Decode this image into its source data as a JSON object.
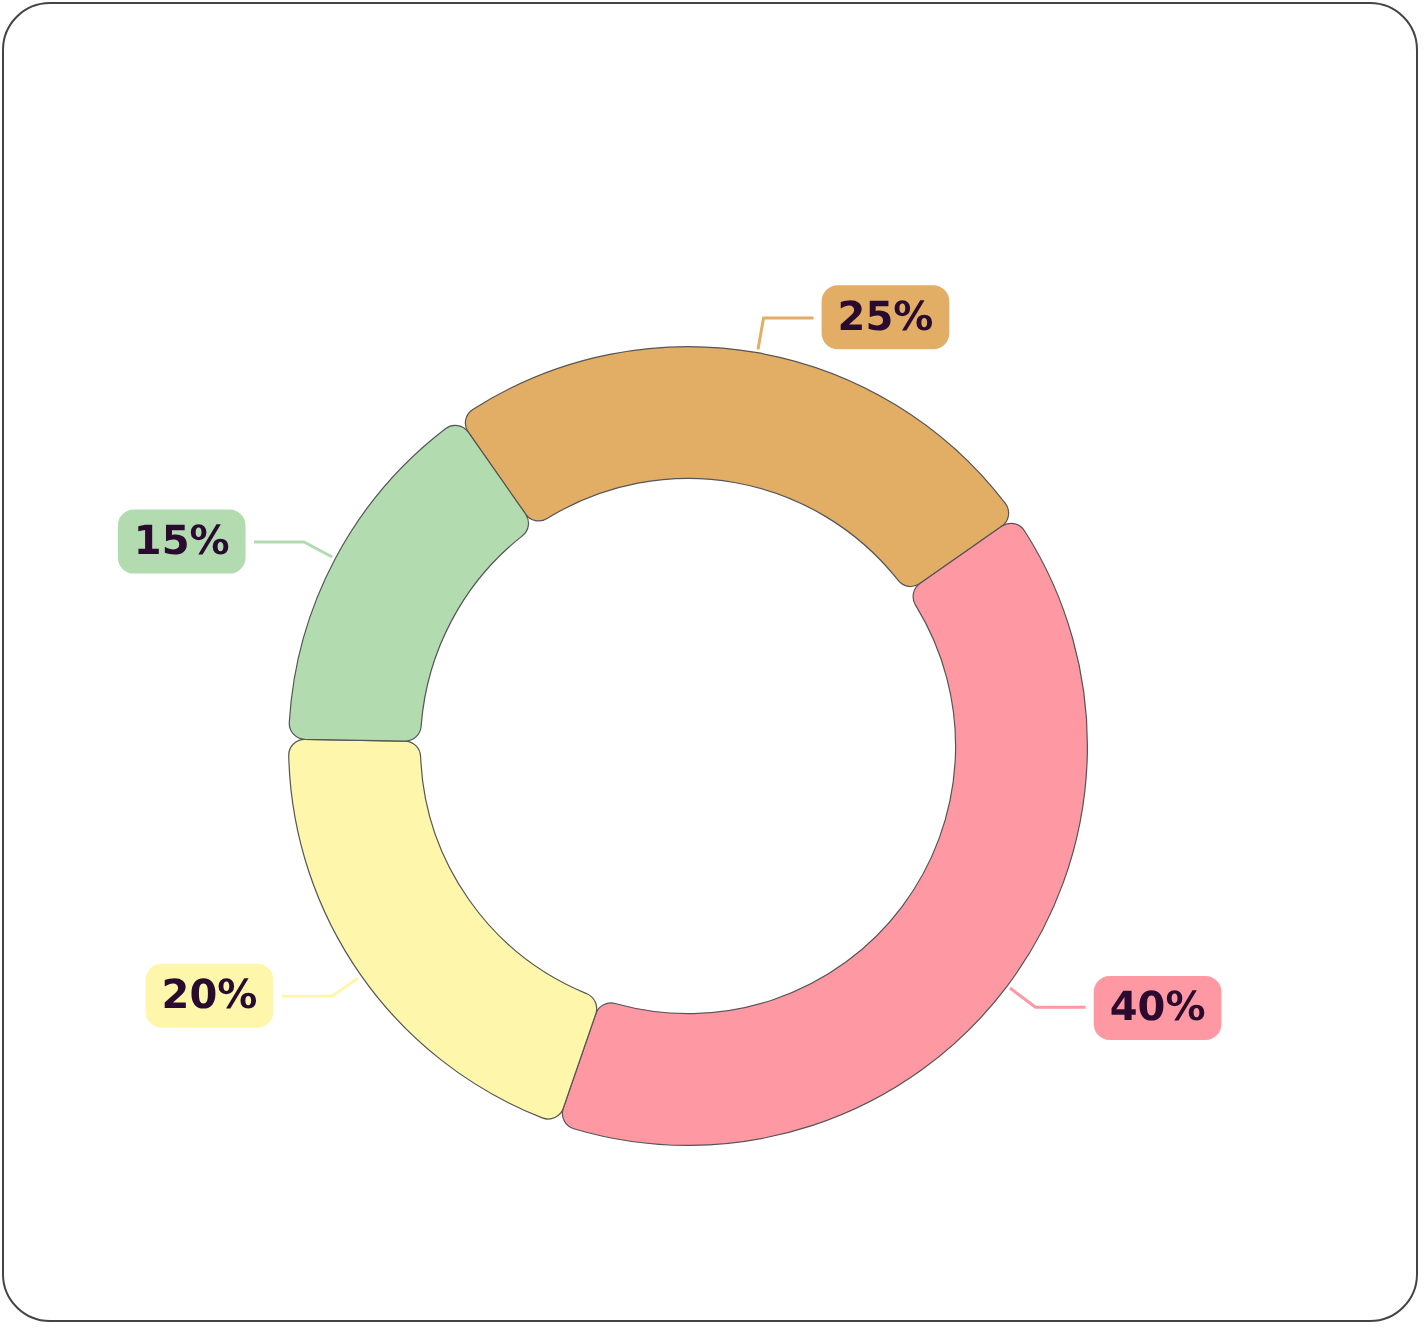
{
  "chart_data": {
    "type": "donut",
    "categories": [
      null,
      null,
      null,
      null
    ],
    "values": [
      25,
      40,
      20,
      15
    ],
    "colors": [
      "#e2ae66",
      "#fe98a2",
      "#fef7ab",
      "#b2dcb0"
    ],
    "value_labels": [
      "25%",
      "40%",
      "20%",
      "15%"
    ],
    "legend": false
  }
}
